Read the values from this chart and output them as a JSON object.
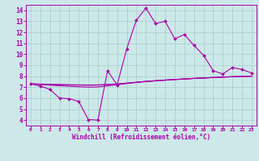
{
  "xlabel": "Windchill (Refroidissement éolien,°C)",
  "bg_color": "#cce8e8",
  "line_color": "#aa00aa",
  "grid_color": "#aacccc",
  "xlim": [
    -0.5,
    23.5
  ],
  "ylim": [
    3.5,
    14.5
  ],
  "xticks": [
    0,
    1,
    2,
    3,
    4,
    5,
    6,
    7,
    8,
    9,
    10,
    11,
    12,
    13,
    14,
    15,
    16,
    17,
    18,
    19,
    20,
    21,
    22,
    23
  ],
  "yticks": [
    4,
    5,
    6,
    7,
    8,
    9,
    10,
    11,
    12,
    13,
    14
  ],
  "series1_y": [
    7.3,
    7.1,
    6.8,
    6.0,
    5.95,
    5.7,
    4.05,
    4.0,
    8.5,
    7.2,
    10.5,
    13.1,
    14.2,
    12.8,
    13.0,
    11.4,
    11.8,
    10.8,
    9.9,
    8.5,
    8.2,
    8.8,
    8.6,
    8.3
  ],
  "series2_y": [
    7.3,
    7.28,
    7.26,
    7.24,
    7.22,
    7.21,
    7.2,
    7.21,
    7.24,
    7.29,
    7.36,
    7.44,
    7.52,
    7.58,
    7.64,
    7.7,
    7.75,
    7.8,
    7.84,
    7.88,
    7.92,
    7.95,
    7.98,
    8.0
  ],
  "series3_y": [
    7.3,
    7.27,
    7.24,
    7.22,
    7.2,
    7.19,
    7.18,
    7.19,
    7.23,
    7.29,
    7.37,
    7.45,
    7.53,
    7.59,
    7.65,
    7.7,
    7.75,
    7.8,
    7.84,
    7.88,
    7.92,
    7.95,
    7.98,
    8.0
  ],
  "series4_y": [
    7.3,
    7.24,
    7.18,
    7.13,
    7.08,
    7.04,
    7.0,
    7.02,
    7.12,
    7.22,
    7.33,
    7.43,
    7.51,
    7.57,
    7.63,
    7.69,
    7.74,
    7.79,
    7.83,
    7.87,
    7.91,
    7.95,
    7.98,
    8.0
  ]
}
